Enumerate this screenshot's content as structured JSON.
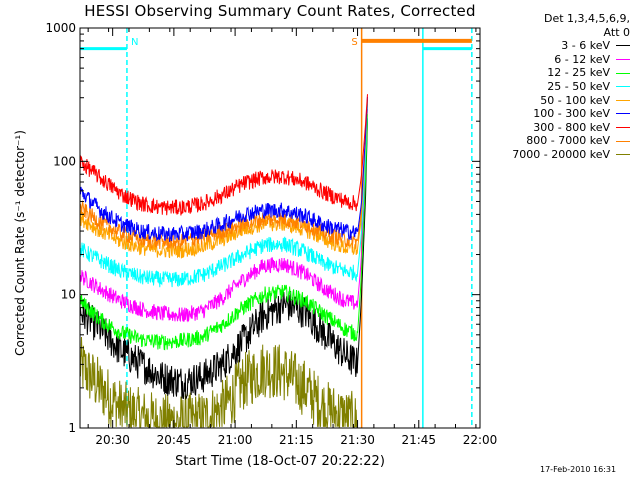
{
  "header": {
    "title": "HESSI Observing Summary Count Rates, Corrected"
  },
  "legend": {
    "header_line1": "Det 1,3,4,5,6,9,",
    "header_line2": "Att 0",
    "entries": [
      {
        "label": "3 - 6 keV",
        "color": "#000000"
      },
      {
        "label": "6 - 12 keV",
        "color": "#ff00ff"
      },
      {
        "label": "12 - 25 keV",
        "color": "#00ff00"
      },
      {
        "label": "25 - 50 keV",
        "color": "#00ffff"
      },
      {
        "label": "50 - 100 keV",
        "color": "#ffa500"
      },
      {
        "label": "100 - 300 keV",
        "color": "#0000ff"
      },
      {
        "label": "300 - 800 keV",
        "color": "#ff0000"
      },
      {
        "label": "800 - 7000 keV",
        "color": "#ff8000"
      },
      {
        "label": "7000 - 20000 keV",
        "color": "#808000"
      }
    ]
  },
  "axes": {
    "ylabel": "Corrected Count Rate (s⁻¹ detector⁻¹)",
    "xlabel": "Start Time (18-Oct-07 20:22:22)"
  },
  "footer": {
    "timestamp": "17-Feb-2010 16:31"
  },
  "chart_data": {
    "type": "line",
    "title": "HESSI Observing Summary Count Rates, Corrected",
    "xlabel": "Start Time (18-Oct-07 20:22:22)",
    "ylabel": "Corrected Count Rate (s⁻¹ detector⁻¹)",
    "x_unit": "minutes after 20:22:22",
    "xlim": [
      0,
      98
    ],
    "ylim": [
      1,
      1000
    ],
    "yscale": "log",
    "x_ticks": [
      {
        "t": 8,
        "label": "20:30"
      },
      {
        "t": 23,
        "label": "20:45"
      },
      {
        "t": 38,
        "label": "21:00"
      },
      {
        "t": 53,
        "label": "21:15"
      },
      {
        "t": 68,
        "label": "21:30"
      },
      {
        "t": 83,
        "label": "21:45"
      },
      {
        "t": 98,
        "label": "22:00"
      }
    ],
    "y_ticks": [
      {
        "v": 1,
        "label": "1"
      },
      {
        "v": 10,
        "label": "10"
      },
      {
        "v": 100,
        "label": "100"
      },
      {
        "v": 1000,
        "label": "1000"
      }
    ],
    "legend_placement": "right",
    "grid": false,
    "series": [
      {
        "name": "3 - 6 keV",
        "color": "#000000",
        "x": [
          0,
          5,
          10,
          15,
          20,
          25,
          30,
          35,
          40,
          45,
          50,
          55,
          60,
          65,
          68,
          69,
          70,
          70.5
        ],
        "y": [
          7.5,
          5.5,
          3.8,
          3.0,
          2.4,
          2.2,
          2.4,
          3.0,
          4.5,
          7.0,
          8.5,
          7.5,
          5.0,
          3.5,
          3.0,
          10,
          60,
          250
        ]
      },
      {
        "name": "6 - 12 keV",
        "color": "#ff00ff",
        "x": [
          0,
          5,
          10,
          15,
          20,
          25,
          30,
          35,
          40,
          45,
          50,
          55,
          60,
          65,
          68,
          69,
          70,
          70.5
        ],
        "y": [
          14,
          11,
          9.0,
          7.8,
          7.2,
          7.0,
          7.5,
          9.5,
          13,
          16.5,
          17,
          14.5,
          11,
          9.0,
          8.5,
          20,
          100,
          280
        ]
      },
      {
        "name": "12 - 25 keV",
        "color": "#00ff00",
        "x": [
          0,
          5,
          10,
          15,
          20,
          25,
          30,
          35,
          40,
          45,
          50,
          55,
          60,
          65,
          68,
          69,
          70,
          70.5
        ],
        "y": [
          9.0,
          6.5,
          5.2,
          4.6,
          4.4,
          4.5,
          4.8,
          6.0,
          8.0,
          10,
          10.5,
          9.0,
          7.0,
          5.5,
          5.0,
          15,
          80,
          260
        ]
      },
      {
        "name": "25 - 50 keV",
        "color": "#00ffff",
        "x": [
          0,
          5,
          10,
          15,
          20,
          25,
          30,
          35,
          40,
          45,
          50,
          55,
          60,
          65,
          68,
          69,
          70,
          70.5
        ],
        "y": [
          22,
          18,
          15,
          13.5,
          13,
          13,
          14,
          16.5,
          20,
          23.5,
          24,
          21,
          17,
          15,
          14.5,
          30,
          120,
          300
        ]
      },
      {
        "name": "50 - 100 keV",
        "color": "#ffa500",
        "x": [
          0,
          5,
          10,
          15,
          20,
          25,
          30,
          35,
          40,
          45,
          50,
          55,
          60,
          65,
          68,
          69,
          70,
          70.5
        ],
        "y": [
          38,
          30,
          25,
          22.5,
          21.5,
          21.5,
          23,
          26,
          31,
          34,
          34,
          31,
          26,
          22.5,
          22,
          40,
          150,
          320
        ]
      },
      {
        "name": "100 - 300 keV",
        "color": "#0000ff",
        "x": [
          0,
          5,
          10,
          15,
          20,
          25,
          30,
          35,
          40,
          45,
          50,
          55,
          60,
          65,
          68,
          69,
          70,
          70.5
        ],
        "y": [
          60,
          43,
          34,
          30,
          28.5,
          28.5,
          30,
          34,
          40,
          43,
          43,
          39,
          33,
          30,
          29,
          50,
          170,
          330
        ]
      },
      {
        "name": "300 - 800 keV",
        "color": "#ff0000",
        "x": [
          0,
          5,
          10,
          15,
          20,
          25,
          30,
          35,
          40,
          45,
          50,
          55,
          60,
          65,
          68,
          69,
          70,
          70.5
        ],
        "y": [
          100,
          75,
          57,
          48,
          45,
          45,
          48,
          56,
          68,
          76,
          77,
          70,
          58,
          50,
          48,
          80,
          200,
          340
        ]
      },
      {
        "name": "800 - 7000 keV",
        "color": "#ff8000",
        "x": [
          0,
          5,
          10,
          15,
          20,
          25,
          30,
          35,
          40,
          45,
          50,
          55,
          60,
          65,
          68,
          69,
          70,
          70.5
        ],
        "y": [
          45,
          35,
          29,
          26,
          25,
          25,
          27,
          30,
          34,
          37,
          37,
          34,
          29,
          26,
          25,
          45,
          160,
          310
        ]
      },
      {
        "name": "7000 - 20000 keV",
        "color": "#808000",
        "x": [
          0,
          5,
          10,
          15,
          20,
          25,
          30,
          35,
          40,
          45,
          50,
          55,
          60,
          65,
          68
        ],
        "y": [
          3.0,
          2.0,
          1.4,
          1.2,
          1.1,
          1.1,
          1.15,
          1.4,
          2.2,
          2.8,
          2.6,
          2.0,
          1.4,
          1.2,
          1.1
        ]
      }
    ],
    "flags": [
      {
        "label": "",
        "color": "#00ffff",
        "level": 700,
        "x0": 0,
        "x1": 11.5,
        "markers": [
          11.5
        ]
      },
      {
        "label": "N",
        "color": "#00ffff",
        "level": 700,
        "x0": 12,
        "x1": 12,
        "markers": []
      },
      {
        "label": "",
        "color": "#00ffff",
        "level": 700,
        "x0": 84,
        "x1": 96,
        "markers": [
          84,
          96
        ]
      },
      {
        "label": "S",
        "color": "#ff8000",
        "level": 800,
        "x0": 69,
        "x1": 96,
        "markers": [
          69
        ]
      }
    ],
    "flag_labels": [
      {
        "text": "N",
        "t": 12.5,
        "v": 800,
        "color": "#00ffff"
      },
      {
        "text": "S",
        "t": 66.5,
        "v": 800,
        "color": "#ff8000"
      }
    ]
  }
}
